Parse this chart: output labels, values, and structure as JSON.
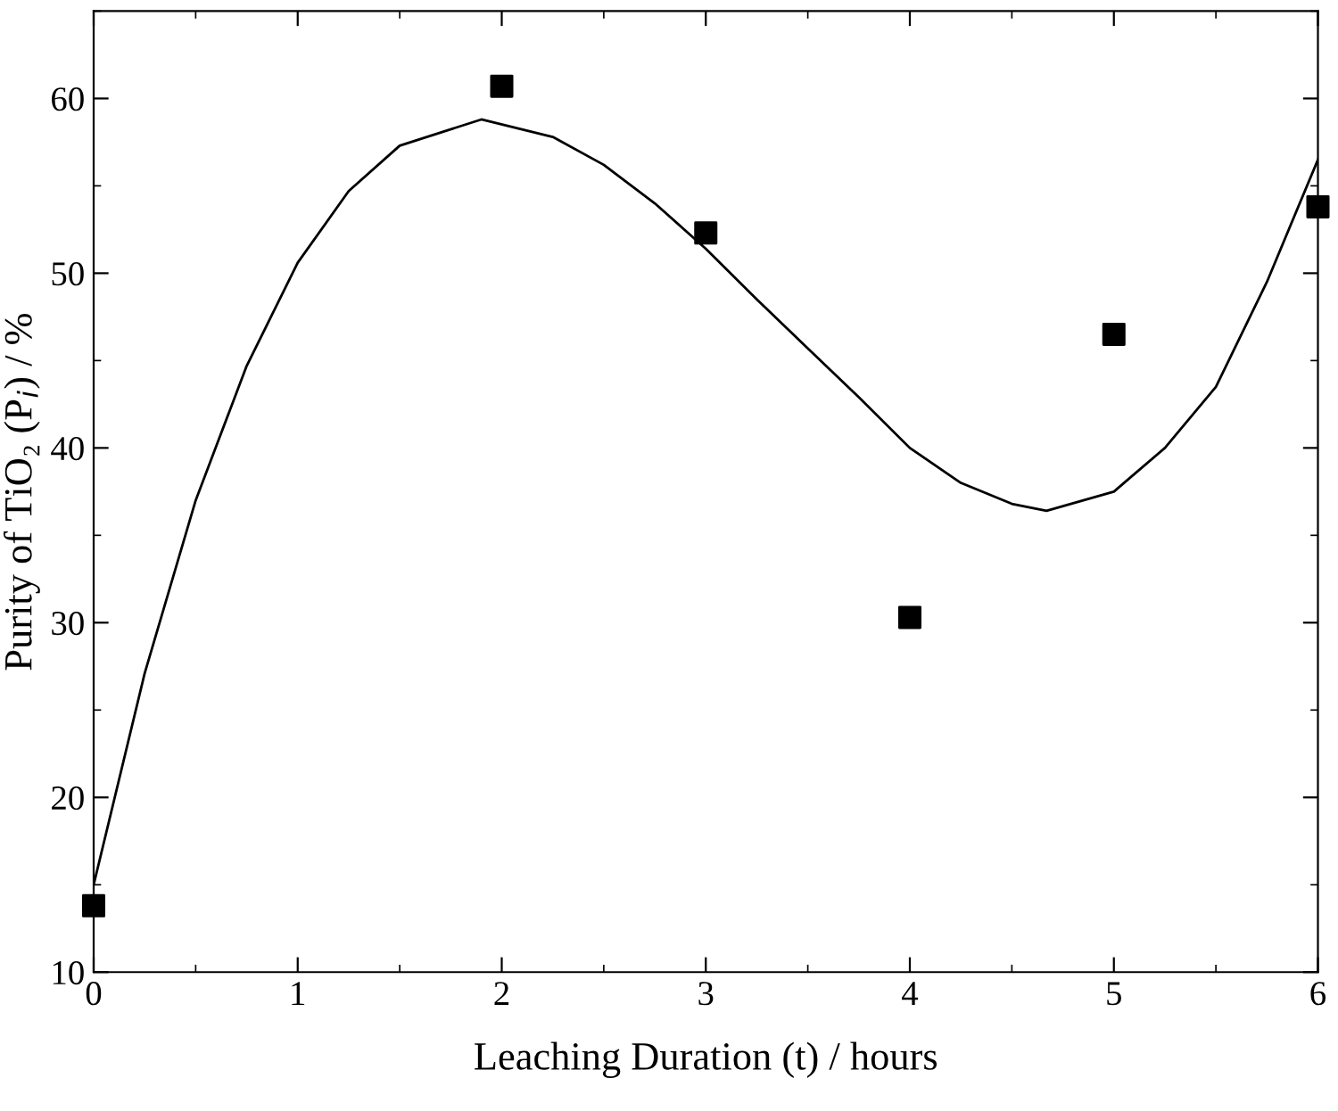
{
  "chart_data": {
    "type": "scatter",
    "xlabel": "Leaching Duration (t) / hours",
    "ylabel": "Purity of TiO₂ (P$_{i}$) / %",
    "xlim": [
      0,
      6
    ],
    "ylim": [
      10,
      65
    ],
    "xticks": [
      0,
      1,
      2,
      3,
      4,
      5,
      6
    ],
    "yticks": [
      10,
      20,
      30,
      40,
      50,
      60
    ],
    "grid": false,
    "legend": false,
    "series": [
      {
        "marker": "square",
        "color": "#000000",
        "x": [
          0,
          2,
          3,
          4,
          5,
          6
        ],
        "values": [
          13.8,
          60.7,
          52.3,
          30.3,
          46.5,
          53.8
        ]
      },
      {
        "type": "line",
        "marker": "none",
        "line_style": "solid",
        "color": "#000000",
        "x": [
          0,
          0.25,
          0.5,
          0.75,
          1,
          1.25,
          1.5,
          1.9,
          2.25,
          2.5,
          2.75,
          3,
          3.25,
          3.5,
          3.75,
          4,
          4.25,
          4.5,
          4.67,
          5,
          5.25,
          5.5,
          5.75,
          6
        ],
        "values": [
          15,
          27.1,
          37.0,
          44.7,
          50.6,
          54.7,
          57.3,
          58.8,
          57.8,
          56.2,
          54.0,
          51.4,
          48.5,
          45.7,
          42.9,
          40.0,
          38.0,
          36.8,
          36.4,
          37.5,
          40.0,
          43.5,
          49.5,
          56.5
        ]
      }
    ]
  }
}
